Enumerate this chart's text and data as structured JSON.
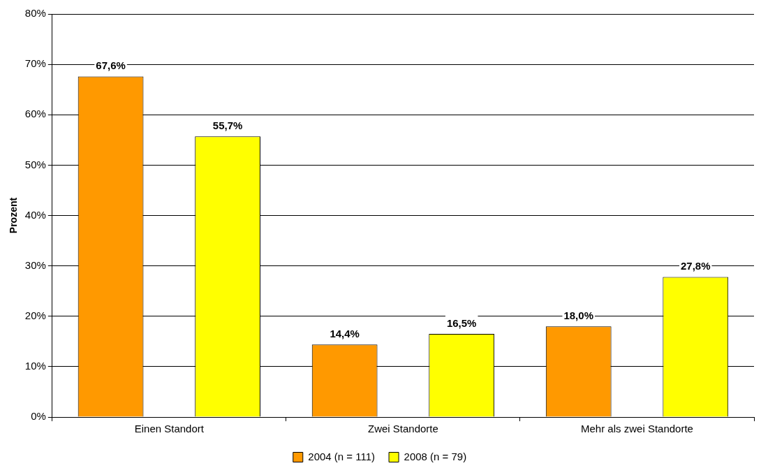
{
  "chart_data": {
    "type": "bar",
    "ylabel": "Prozent",
    "categories": [
      "Einen Standort",
      "Zwei Standorte",
      "Mehr als zwei Standorte"
    ],
    "series": [
      {
        "name": "2004 (n = 111)",
        "color": "#ff9900",
        "values": [
          67.6,
          14.4,
          18.0
        ],
        "value_labels": [
          "67,6%",
          "14,4%",
          "18,0%"
        ]
      },
      {
        "name": "2008 (n = 79)",
        "color": "#ffff00",
        "values": [
          55.7,
          16.5,
          27.8
        ],
        "value_labels": [
          "55,7%",
          "16,5%",
          "27,8%"
        ]
      }
    ],
    "ylim": [
      0,
      80
    ],
    "yticks": [
      {
        "value": 0,
        "label": "0%"
      },
      {
        "value": 10,
        "label": "10%"
      },
      {
        "value": 20,
        "label": "20%"
      },
      {
        "value": 30,
        "label": "30%"
      },
      {
        "value": 40,
        "label": "40%"
      },
      {
        "value": 50,
        "label": "50%"
      },
      {
        "value": 60,
        "label": "60%"
      },
      {
        "value": 70,
        "label": "70%"
      },
      {
        "value": 80,
        "label": "80%"
      }
    ],
    "grid": "y",
    "legend": "bottom"
  }
}
